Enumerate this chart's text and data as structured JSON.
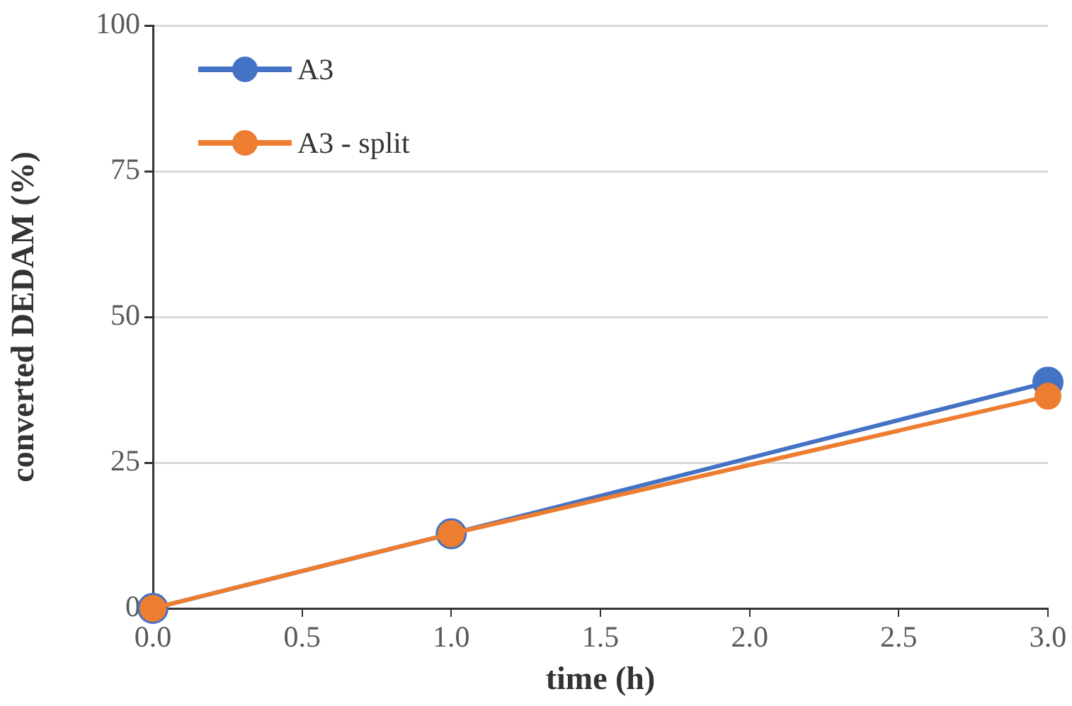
{
  "chart_data": {
    "type": "line",
    "xlabel": "time (h)",
    "ylabel": "converted DEDAM (%)",
    "x": [
      0,
      1,
      3
    ],
    "series": [
      {
        "name": "A3",
        "color": "#4472c4",
        "values": [
          0,
          12.8,
          38.8
        ]
      },
      {
        "name": "A3 - split",
        "color": "#ed7d31",
        "values": [
          0,
          12.8,
          36.4
        ]
      }
    ],
    "xlim": [
      0,
      3
    ],
    "xticks": [
      {
        "value": 0,
        "label": "0.0"
      },
      {
        "value": 0.5,
        "label": "0.5"
      },
      {
        "value": 1,
        "label": "1.0"
      },
      {
        "value": 1.5,
        "label": "1.5"
      },
      {
        "value": 2,
        "label": "2.0"
      },
      {
        "value": 2.5,
        "label": "2.5"
      },
      {
        "value": 3,
        "label": "3.0"
      }
    ],
    "ylim": [
      0,
      100
    ],
    "yticks": [
      0,
      25,
      50,
      75,
      100
    ],
    "grid": "y",
    "legend": "top left",
    "marker": "circle",
    "line_style": "solid"
  }
}
